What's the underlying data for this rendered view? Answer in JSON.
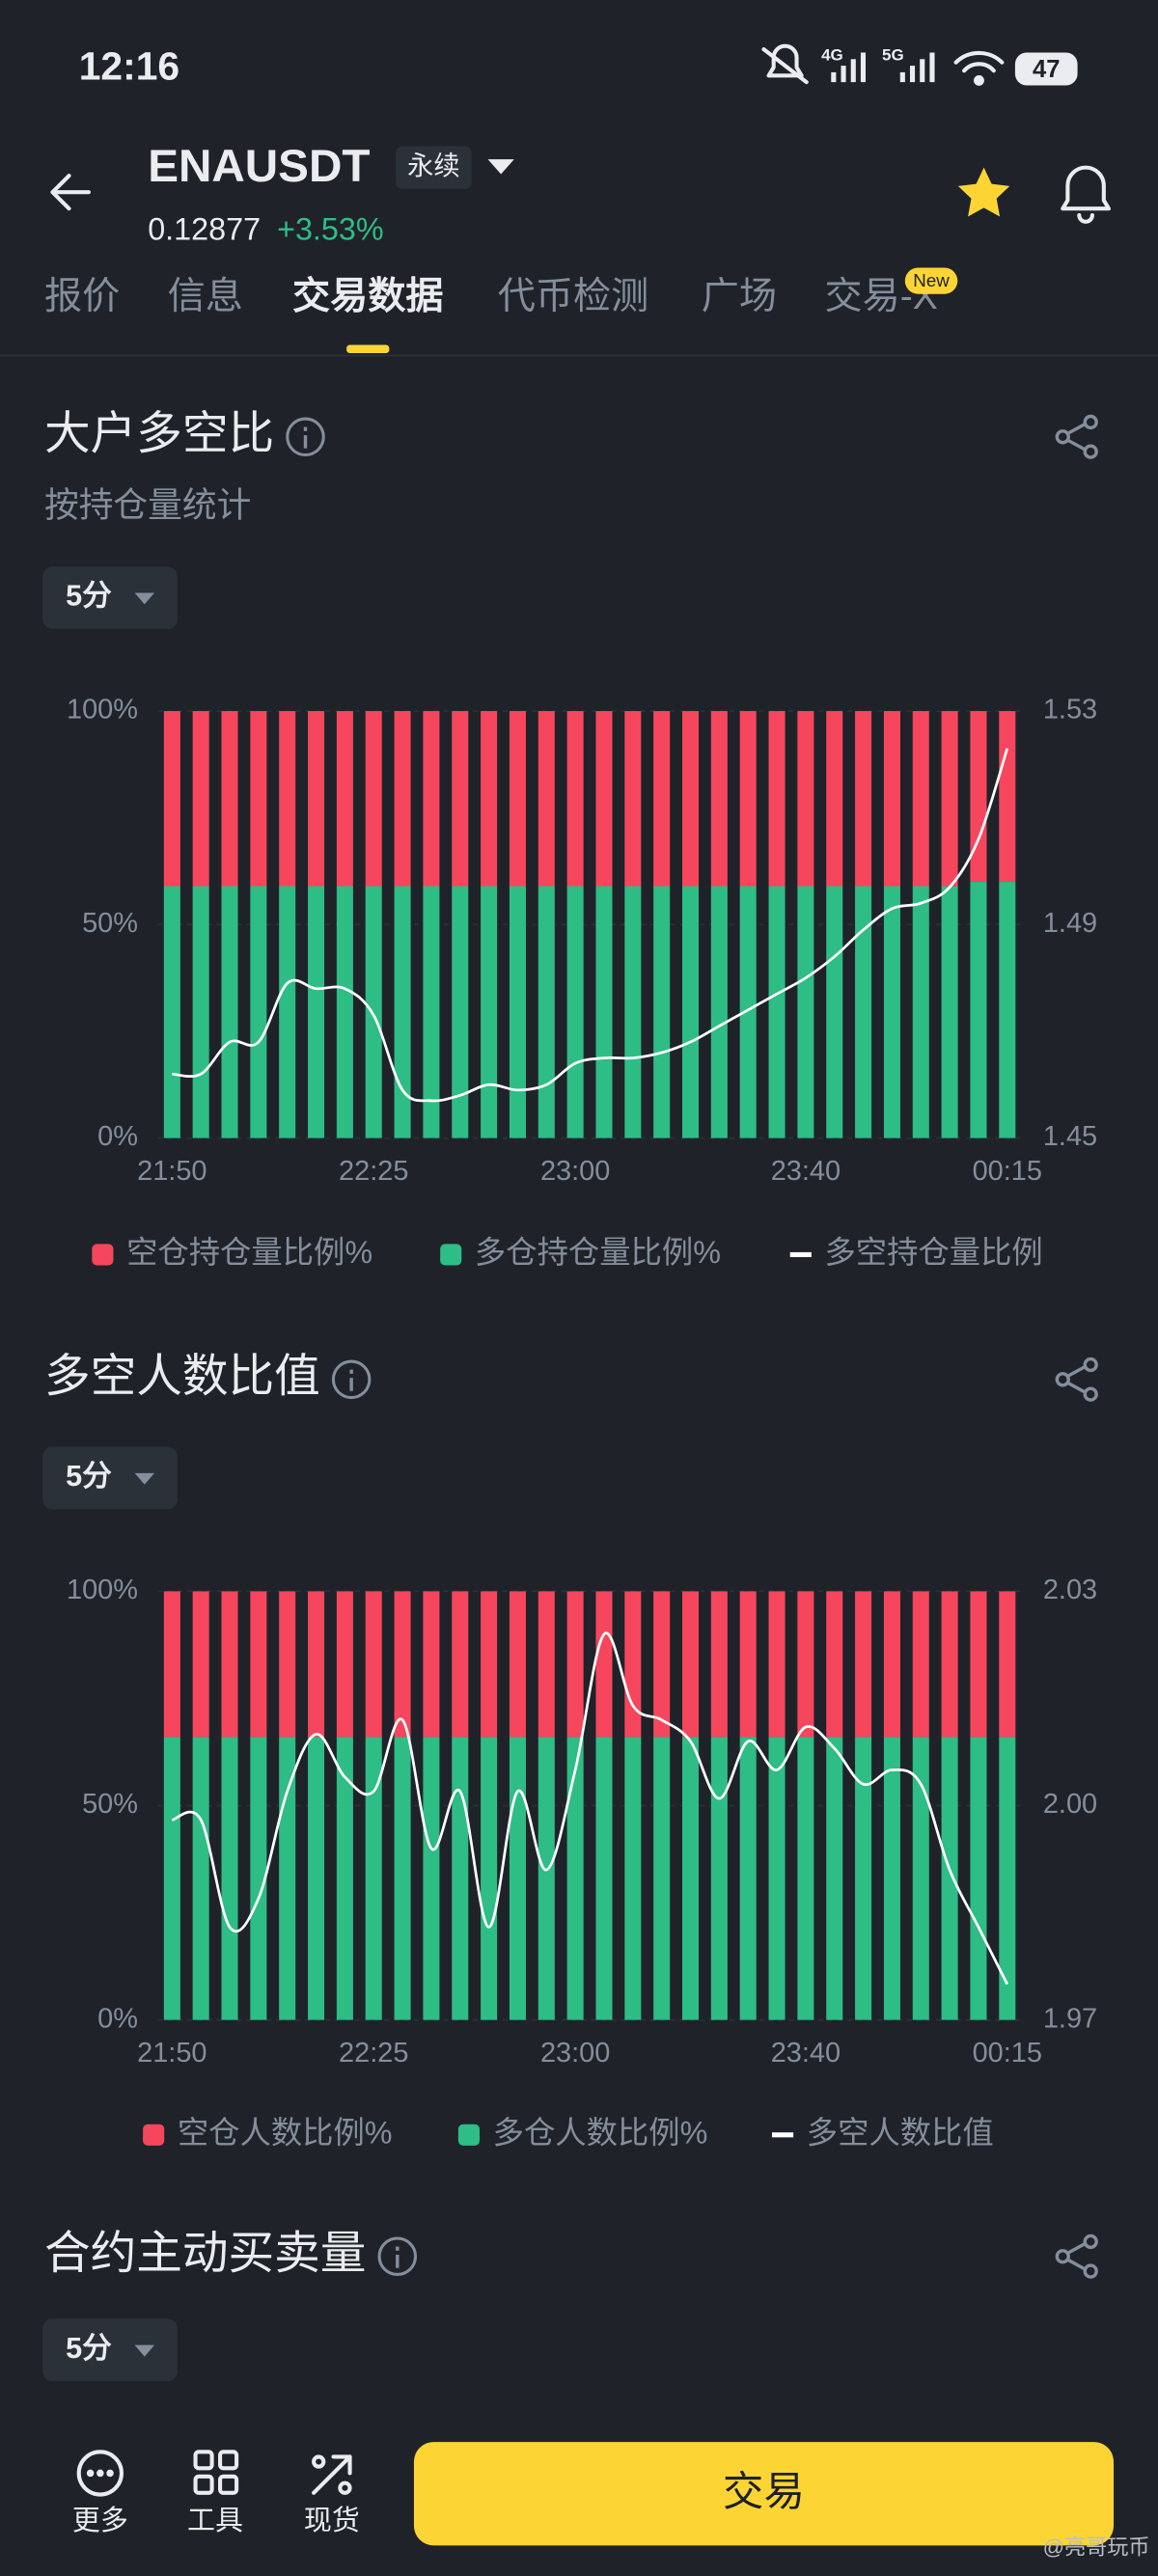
{
  "status_bar": {
    "time": "12:16",
    "network": [
      "4G",
      "5G"
    ],
    "battery": "47"
  },
  "header": {
    "symbol": "ENAUSDT",
    "contract": "永续",
    "price": "0.12877",
    "change": "+3.53%"
  },
  "tabs": {
    "items": [
      "报价",
      "信息",
      "交易数据",
      "代币检测",
      "广场",
      "交易-X"
    ],
    "active": 2,
    "badge": "New"
  },
  "chart_data": [
    {
      "type": "bar",
      "title": "大户多空比",
      "subtitle": "按持仓量统计",
      "interval": "5分",
      "stacked": true,
      "grid": true,
      "categories": [
        "21:50",
        null,
        null,
        null,
        null,
        null,
        null,
        "22:25",
        null,
        null,
        null,
        null,
        null,
        null,
        "23:00",
        null,
        null,
        null,
        null,
        null,
        null,
        null,
        "23:40",
        null,
        null,
        null,
        null,
        null,
        null,
        "00:15"
      ],
      "series": [
        {
          "name": "空仓持仓量比例%",
          "color": "#f6465d",
          "values": [
            41,
            41,
            41,
            41,
            41,
            41,
            41,
            41,
            41,
            41,
            41,
            41,
            41,
            41,
            41,
            41,
            41,
            41,
            41,
            41,
            41,
            41,
            41,
            41,
            41,
            41,
            41,
            41,
            40,
            40
          ]
        },
        {
          "name": "多仓持仓量比例%",
          "color": "#2ebd85",
          "values": [
            59,
            59,
            59,
            59,
            59,
            59,
            59,
            59,
            59,
            59,
            59,
            59,
            59,
            59,
            59,
            59,
            59,
            59,
            59,
            59,
            59,
            59,
            59,
            59,
            59,
            59,
            59,
            59,
            60,
            60
          ]
        },
        {
          "name": "多空持仓量比例",
          "color": "#ffffff",
          "type": "line",
          "axis": "y2",
          "values": [
            1.462,
            1.462,
            1.468,
            1.468,
            1.479,
            1.478,
            1.478,
            1.473,
            1.459,
            1.457,
            1.458,
            1.46,
            1.459,
            1.46,
            1.464,
            1.465,
            1.465,
            1.466,
            1.468,
            1.471,
            1.474,
            1.477,
            1.48,
            1.484,
            1.489,
            1.493,
            1.494,
            1.497,
            1.506,
            1.523
          ]
        }
      ],
      "ylim": [
        0,
        100
      ],
      "yticks": [
        {
          "value": 0,
          "label": "0%"
        },
        {
          "value": 50,
          "label": "50%"
        },
        {
          "value": 100,
          "label": "100%"
        }
      ],
      "y2lim": [
        1.45,
        1.53
      ],
      "y2ticks": [
        1.45,
        1.49,
        1.53
      ]
    },
    {
      "type": "bar",
      "title": "多空人数比值",
      "interval": "5分",
      "stacked": true,
      "grid": true,
      "categories": [
        "21:50",
        null,
        null,
        null,
        null,
        null,
        null,
        "22:25",
        null,
        null,
        null,
        null,
        null,
        null,
        "23:00",
        null,
        null,
        null,
        null,
        null,
        null,
        null,
        "23:40",
        null,
        null,
        null,
        null,
        null,
        null,
        "00:15"
      ],
      "series": [
        {
          "name": "空仓人数比例%",
          "color": "#f6465d",
          "values": [
            34,
            34,
            34,
            34,
            34,
            34,
            34,
            34,
            34,
            34,
            34,
            34,
            34,
            34,
            34,
            34,
            34,
            34,
            34,
            34,
            34,
            34,
            34,
            34,
            34,
            34,
            34,
            34,
            34,
            34
          ]
        },
        {
          "name": "多仓人数比例%",
          "color": "#2ebd85",
          "values": [
            66,
            66,
            66,
            66,
            66,
            66,
            66,
            66,
            66,
            66,
            66,
            66,
            66,
            66,
            66,
            66,
            66,
            66,
            66,
            66,
            66,
            66,
            66,
            66,
            66,
            66,
            66,
            66,
            66,
            66
          ]
        },
        {
          "name": "多空人数比值",
          "color": "#ffffff",
          "type": "line",
          "axis": "y2",
          "values": [
            1.998,
            1.998,
            1.983,
            1.987,
            2.002,
            2.01,
            2.004,
            2.002,
            2.012,
            1.994,
            2.002,
            1.983,
            2.002,
            1.991,
            2.005,
            2.024,
            2.014,
            2.012,
            2.009,
            2.001,
            2.009,
            2.005,
            2.011,
            2.008,
            2.003,
            2.005,
            2.003,
            1.991,
            1.983,
            1.975
          ]
        }
      ],
      "ylim": [
        0,
        100
      ],
      "yticks": [
        {
          "value": 0,
          "label": "0%"
        },
        {
          "value": 50,
          "label": "50%"
        },
        {
          "value": 100,
          "label": "100%"
        }
      ],
      "y2lim": [
        1.97,
        2.03
      ],
      "y2ticks": [
        1.97,
        {
          "value": 2,
          "label": "2.00"
        },
        2.03
      ]
    }
  ],
  "section": {
    "title": "合约主动买卖量",
    "interval": "5分"
  },
  "bottom_bar": {
    "items": [
      "更多",
      "工具",
      "现货"
    ],
    "button": "交易"
  },
  "watermark": "@亮哥玩币"
}
